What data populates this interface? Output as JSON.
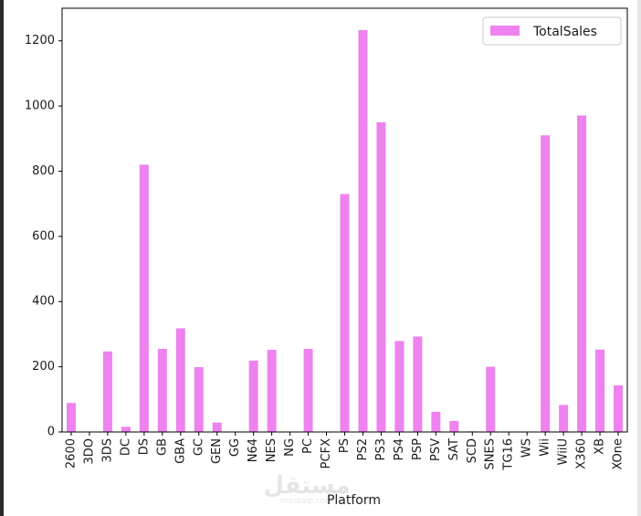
{
  "chart_data": {
    "type": "bar",
    "categories": [
      "2600",
      "3DO",
      "3DS",
      "DC",
      "DS",
      "GB",
      "GBA",
      "GC",
      "GEN",
      "GG",
      "N64",
      "NES",
      "NG",
      "PC",
      "PCFX",
      "PS",
      "PS2",
      "PS3",
      "PS4",
      "PSP",
      "PSV",
      "SAT",
      "SCD",
      "SNES",
      "TG16",
      "WS",
      "Wii",
      "WiiU",
      "X360",
      "XB",
      "XOne"
    ],
    "series": [
      {
        "name": "TotalSales",
        "color": "#ee82ee",
        "values": [
          89,
          0.1,
          247,
          16,
          820,
          255,
          318,
          199,
          29,
          0.04,
          219,
          252,
          1.4,
          255,
          0.03,
          730,
          1233,
          950,
          279,
          293,
          62,
          34,
          1.9,
          200,
          0.16,
          1.4,
          910,
          83,
          971,
          253,
          143
        ]
      }
    ],
    "xlabel": "Platform",
    "ylabel": "",
    "ylim": [
      0,
      1300
    ],
    "yticks": [
      0,
      200,
      400,
      600,
      800,
      1000,
      1200
    ],
    "grid": false,
    "legend_position": "top-right"
  },
  "watermark": {
    "text": "مستقل",
    "subtext": "mostaql.com"
  }
}
